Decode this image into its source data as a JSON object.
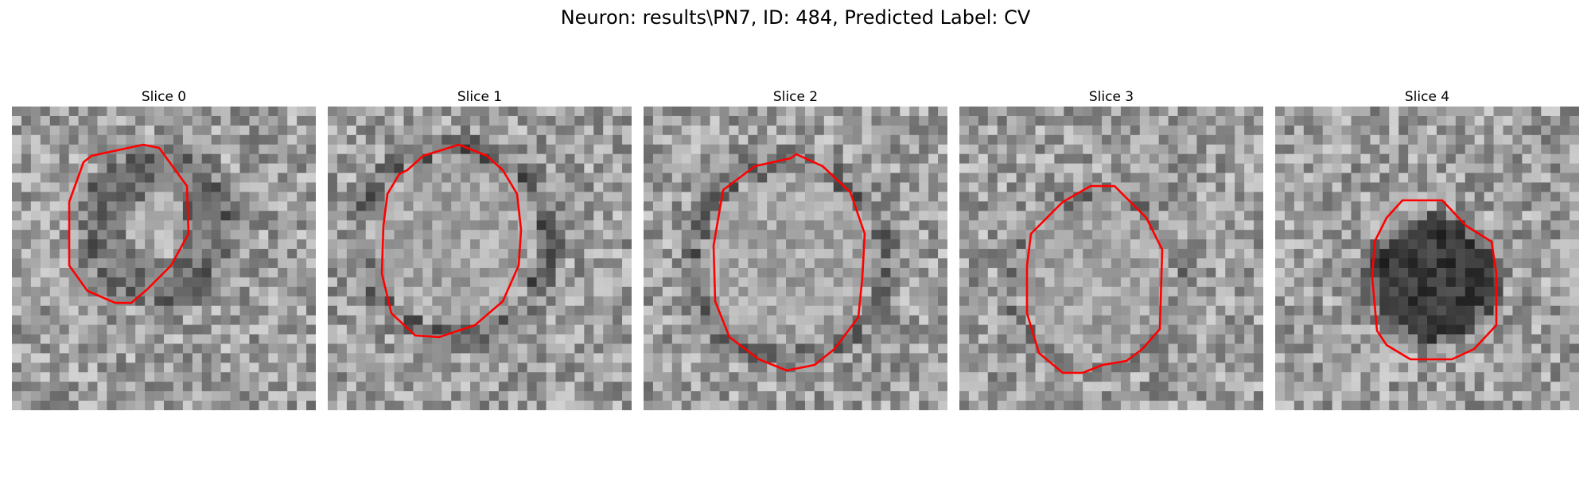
{
  "figure": {
    "title": "Neuron: results\\PN7, ID: 484, Predicted Label: CV"
  },
  "colors": {
    "contour": "#ff0000",
    "background": "#ffffff"
  },
  "slices": [
    {
      "title": "Slice 0",
      "seed": 11
    },
    {
      "title": "Slice 1",
      "seed": 23
    },
    {
      "title": "Slice 2",
      "seed": 37
    },
    {
      "title": "Slice 3",
      "seed": 53
    },
    {
      "title": "Slice 4",
      "seed": 71
    }
  ]
}
